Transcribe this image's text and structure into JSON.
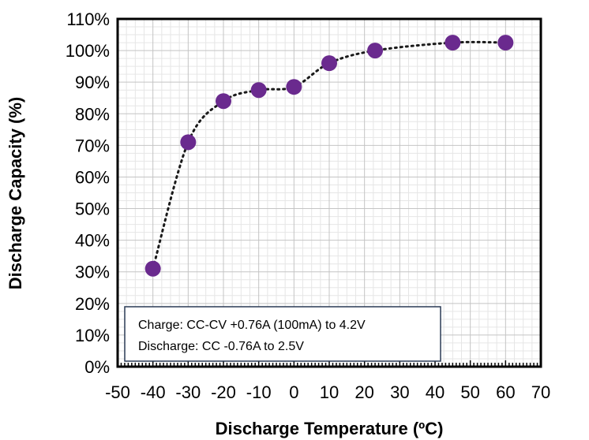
{
  "chart_data": {
    "type": "scatter",
    "title": "",
    "xlabel": "Discharge Temperature (ºC)",
    "ylabel": "Discharge Capacity (%)",
    "xlim": [
      -50,
      70
    ],
    "ylim": [
      0,
      110
    ],
    "x_ticks": [
      "-50",
      "-40",
      "-30",
      "-20",
      "-10",
      "0",
      "10",
      "20",
      "30",
      "40",
      "50",
      "60",
      "70"
    ],
    "y_ticks": [
      "0%",
      "10%",
      "20%",
      "30%",
      "40%",
      "50%",
      "60%",
      "70%",
      "80%",
      "90%",
      "100%",
      "110%"
    ],
    "grid": true,
    "series": [
      {
        "x": [
          -40,
          -30,
          -20,
          -10,
          0,
          10,
          23,
          45,
          60
        ],
        "y": [
          31,
          71,
          84,
          87.5,
          88.5,
          96,
          100,
          102.5,
          102.5
        ],
        "marker_color": "#6a2a8e",
        "line_style": "dotted"
      }
    ],
    "annotation": {
      "line1": "Charge: CC-CV +0.76A (100mA) to 4.2V",
      "line2": "Discharge: CC -0.76A to 2.5V"
    }
  }
}
